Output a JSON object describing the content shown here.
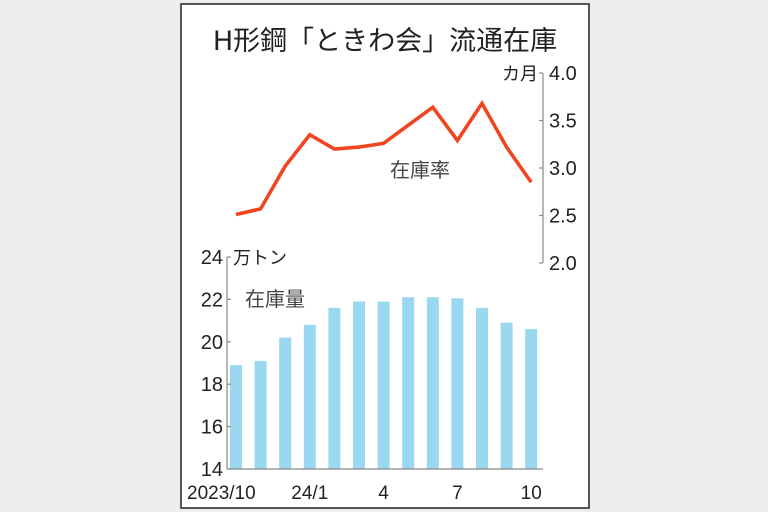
{
  "title": "H形鋼「ときわ会」流通在庫",
  "colors": {
    "background": "#ededed",
    "panel": "#ffffff",
    "border": "#555555",
    "bar": "#9ad8f0",
    "line": "#f04520",
    "axis": "#888888",
    "text": "#222222"
  },
  "x_tick_labels": [
    "2023/10",
    "24/1",
    "4",
    "7",
    "10"
  ],
  "line_chart": {
    "series_label": "在庫率",
    "unit": "カ月",
    "y_ticks": [
      "4.0",
      "3.5",
      "3.0",
      "2.5",
      "2.0"
    ]
  },
  "bar_chart": {
    "series_label": "在庫量",
    "unit": "万トン",
    "y_ticks": [
      "24",
      "22",
      "20",
      "18",
      "16",
      "14"
    ]
  },
  "chart_data": [
    {
      "type": "line",
      "title": "H形鋼「ときわ会」流通在庫",
      "series": [
        {
          "name": "在庫率",
          "values": [
            2.51,
            2.57,
            3.02,
            3.35,
            3.2,
            3.22,
            3.26,
            3.45,
            3.64,
            3.29,
            3.68,
            3.22,
            2.85
          ]
        }
      ],
      "x": [
        "2023/10",
        "2023/11",
        "2023/12",
        "2024/1",
        "2024/2",
        "2024/3",
        "2024/4",
        "2024/5",
        "2024/6",
        "2024/7",
        "2024/8",
        "2024/9",
        "2024/10"
      ],
      "xlabel": "",
      "ylabel": "カ月",
      "ylim": [
        2.0,
        4.0
      ],
      "y_axis_position": "right",
      "y_ticks": [
        2.0,
        2.5,
        3.0,
        3.5,
        4.0
      ],
      "grid": false,
      "annotation": "在庫率"
    },
    {
      "type": "bar",
      "series": [
        {
          "name": "在庫量",
          "values": [
            18.9,
            19.1,
            20.2,
            20.8,
            21.6,
            21.9,
            21.9,
            22.1,
            22.1,
            22.05,
            21.6,
            20.9,
            20.6
          ]
        }
      ],
      "categories": [
        "2023/10",
        "2023/11",
        "2023/12",
        "2024/1",
        "2024/2",
        "2024/3",
        "2024/4",
        "2024/5",
        "2024/6",
        "2024/7",
        "2024/8",
        "2024/9",
        "2024/10"
      ],
      "x_tick_labels": [
        "2023/10",
        "24/1",
        "4",
        "7",
        "10"
      ],
      "xlabel": "",
      "ylabel": "万トン",
      "ylim": [
        14,
        24
      ],
      "y_axis_position": "left",
      "y_ticks": [
        14,
        16,
        18,
        20,
        22,
        24
      ],
      "grid": false,
      "annotation": "在庫量"
    }
  ]
}
